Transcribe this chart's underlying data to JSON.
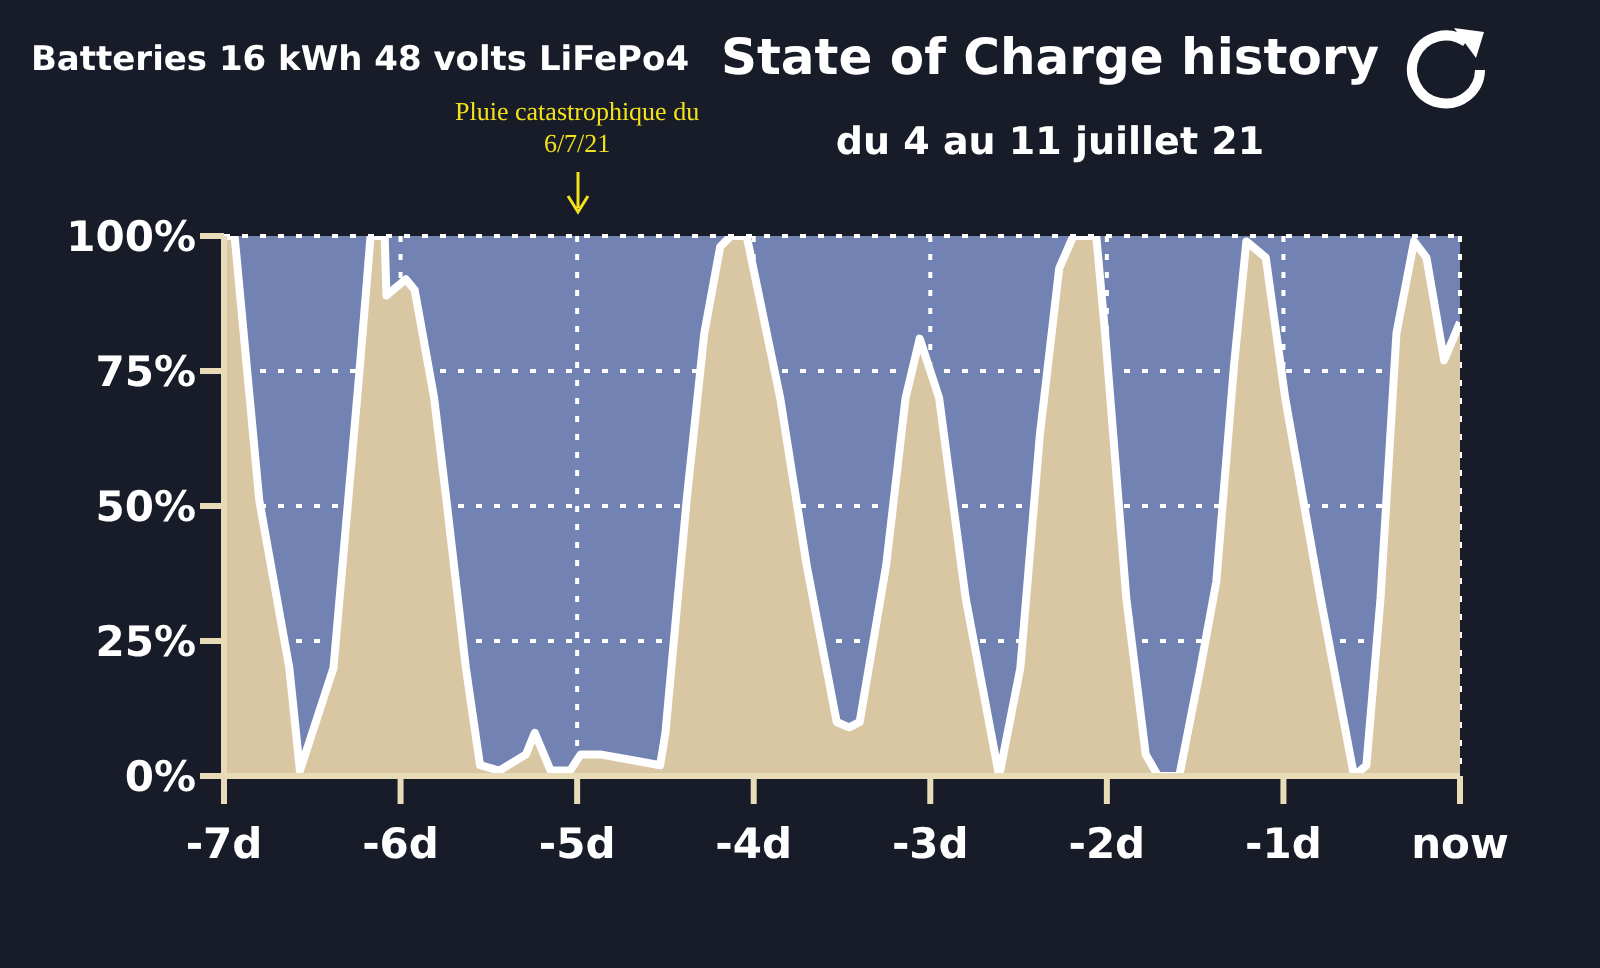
{
  "chart_data": {
    "type": "area",
    "title": "State of Charge history",
    "subtitle": "du 4 au 11 juillet 21",
    "annotations": [
      "Batteries 16 kWh 48 volts LiFePo4",
      "Pluie catastrophique du 6/7/21"
    ],
    "x": [
      -7,
      -6.94,
      -6.8,
      -6.63,
      -6.57,
      -6.38,
      -6.23,
      -6.17,
      -6.09,
      -6.08,
      -5.97,
      -5.92,
      -5.81,
      -5.74,
      -5.63,
      -5.55,
      -5.44,
      -5.29,
      -5.24,
      -5.15,
      -5.04,
      -4.98,
      -4.87,
      -4.7,
      -4.53,
      -4.5,
      -4.38,
      -4.28,
      -4.19,
      -4.13,
      -4.04,
      -3.85,
      -3.7,
      -3.53,
      -3.46,
      -3.4,
      -3.25,
      -3.14,
      -3.06,
      -2.95,
      -2.8,
      -2.61,
      -2.49,
      -2.38,
      -2.27,
      -2.19,
      -2.06,
      -2.01,
      -1.89,
      -1.78,
      -1.71,
      -1.59,
      -1.47,
      -1.38,
      -1.28,
      -1.21,
      -1.1,
      -0.99,
      -0.79,
      -0.6,
      -0.53,
      -0.45,
      -0.36,
      -0.26,
      -0.19,
      -0.09,
      0
    ],
    "series": [
      {
        "color": "#d9c6a3",
        "values": [
          100,
          100,
          51,
          20,
          1,
          20,
          76,
          100,
          100,
          89,
          92,
          90,
          70,
          51,
          20,
          2,
          1,
          4,
          8,
          1,
          1,
          4,
          4,
          3,
          2,
          8,
          51,
          82,
          98,
          100,
          100,
          70,
          39,
          10,
          9,
          10,
          39,
          70,
          81,
          70,
          33,
          0,
          20,
          63,
          94,
          100,
          100,
          82,
          33,
          4,
          0,
          0,
          20,
          36,
          76,
          99,
          96,
          70,
          33,
          0,
          2,
          33,
          82,
          99,
          96,
          77,
          84
        ]
      }
    ],
    "xlim": [
      -7,
      0
    ],
    "xticks": [
      {
        "value": -7,
        "label": "-7d"
      },
      {
        "value": -6,
        "label": "-6d"
      },
      {
        "value": -5,
        "label": "-5d"
      },
      {
        "value": -4,
        "label": "-4d"
      },
      {
        "value": -3,
        "label": "-3d"
      },
      {
        "value": -2,
        "label": "-2d"
      },
      {
        "value": -1,
        "label": "-1d"
      },
      {
        "value": 0,
        "label": "now"
      }
    ],
    "ylim": [
      0,
      100
    ],
    "yticks": [
      {
        "value": 0,
        "label": "0%"
      },
      {
        "value": 25,
        "label": "25%"
      },
      {
        "value": 50,
        "label": "50%"
      },
      {
        "value": 75,
        "label": "75%"
      },
      {
        "value": 100,
        "label": "100%"
      }
    ],
    "grid": true,
    "line_style": "solid",
    "marker": "none"
  }
}
